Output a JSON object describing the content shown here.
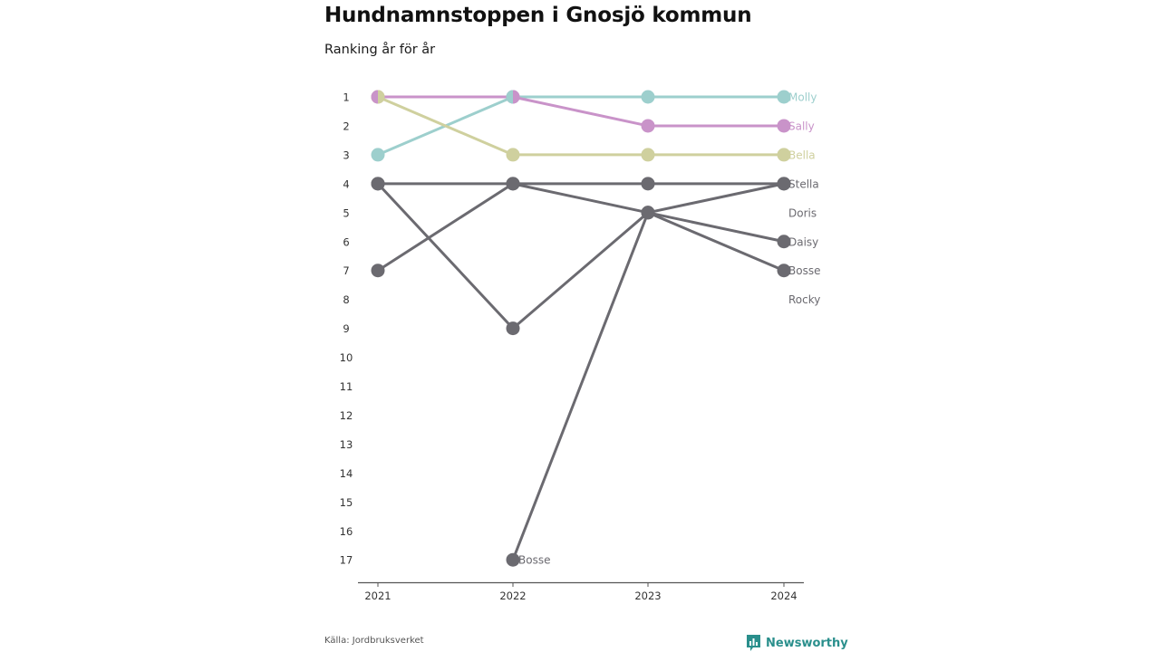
{
  "title": "Hundnamnstoppen i Gnosjö kommun",
  "subtitle": "Ranking år för år",
  "source": "Källa: Jordbruksverket",
  "brand": "Newsworthy",
  "colors": {
    "Molly": "#9dcfcd",
    "Sally": "#c993c9",
    "Bella": "#cfd09e",
    "other": "#6b6a70",
    "axis": "#555555",
    "tick_text": "#333333",
    "brand": "#2a8f8c"
  },
  "chart_data": {
    "type": "line",
    "x": [
      "2021",
      "2022",
      "2023",
      "2024"
    ],
    "y_ticks": [
      "1",
      "2",
      "3",
      "4",
      "5",
      "6",
      "7",
      "8",
      "9",
      "10",
      "11",
      "12",
      "13",
      "14",
      "15",
      "16",
      "17"
    ],
    "ylim": [
      1,
      17
    ],
    "y_inverted": true,
    "series": [
      {
        "name": "Molly",
        "values": [
          3,
          1,
          1,
          1
        ]
      },
      {
        "name": "Sally",
        "values": [
          1,
          1,
          2,
          2
        ]
      },
      {
        "name": "Bella",
        "values": [
          1,
          3,
          3,
          3
        ]
      },
      {
        "name": "Stella",
        "values": [
          4,
          4,
          5,
          4
        ]
      },
      {
        "name": "Doris",
        "values": [
          7,
          4,
          4,
          4
        ]
      },
      {
        "name": "Daisy",
        "values": [
          4,
          9,
          5,
          6
        ]
      },
      {
        "name": "Bosse",
        "values": [
          null,
          17,
          5,
          7
        ]
      }
    ],
    "end_labels": [
      {
        "name": "Molly",
        "rank": 1
      },
      {
        "name": "Sally",
        "rank": 2
      },
      {
        "name": "Bella",
        "rank": 3
      },
      {
        "name": "Stella",
        "rank": 4
      },
      {
        "name": "Doris",
        "rank": 5
      },
      {
        "name": "Daisy",
        "rank": 6
      },
      {
        "name": "Bosse",
        "rank": 7
      },
      {
        "name": "Rocky",
        "rank": 8
      }
    ],
    "annotations": [
      {
        "text": "Bosse",
        "x": "2022",
        "rank": 17
      }
    ]
  }
}
